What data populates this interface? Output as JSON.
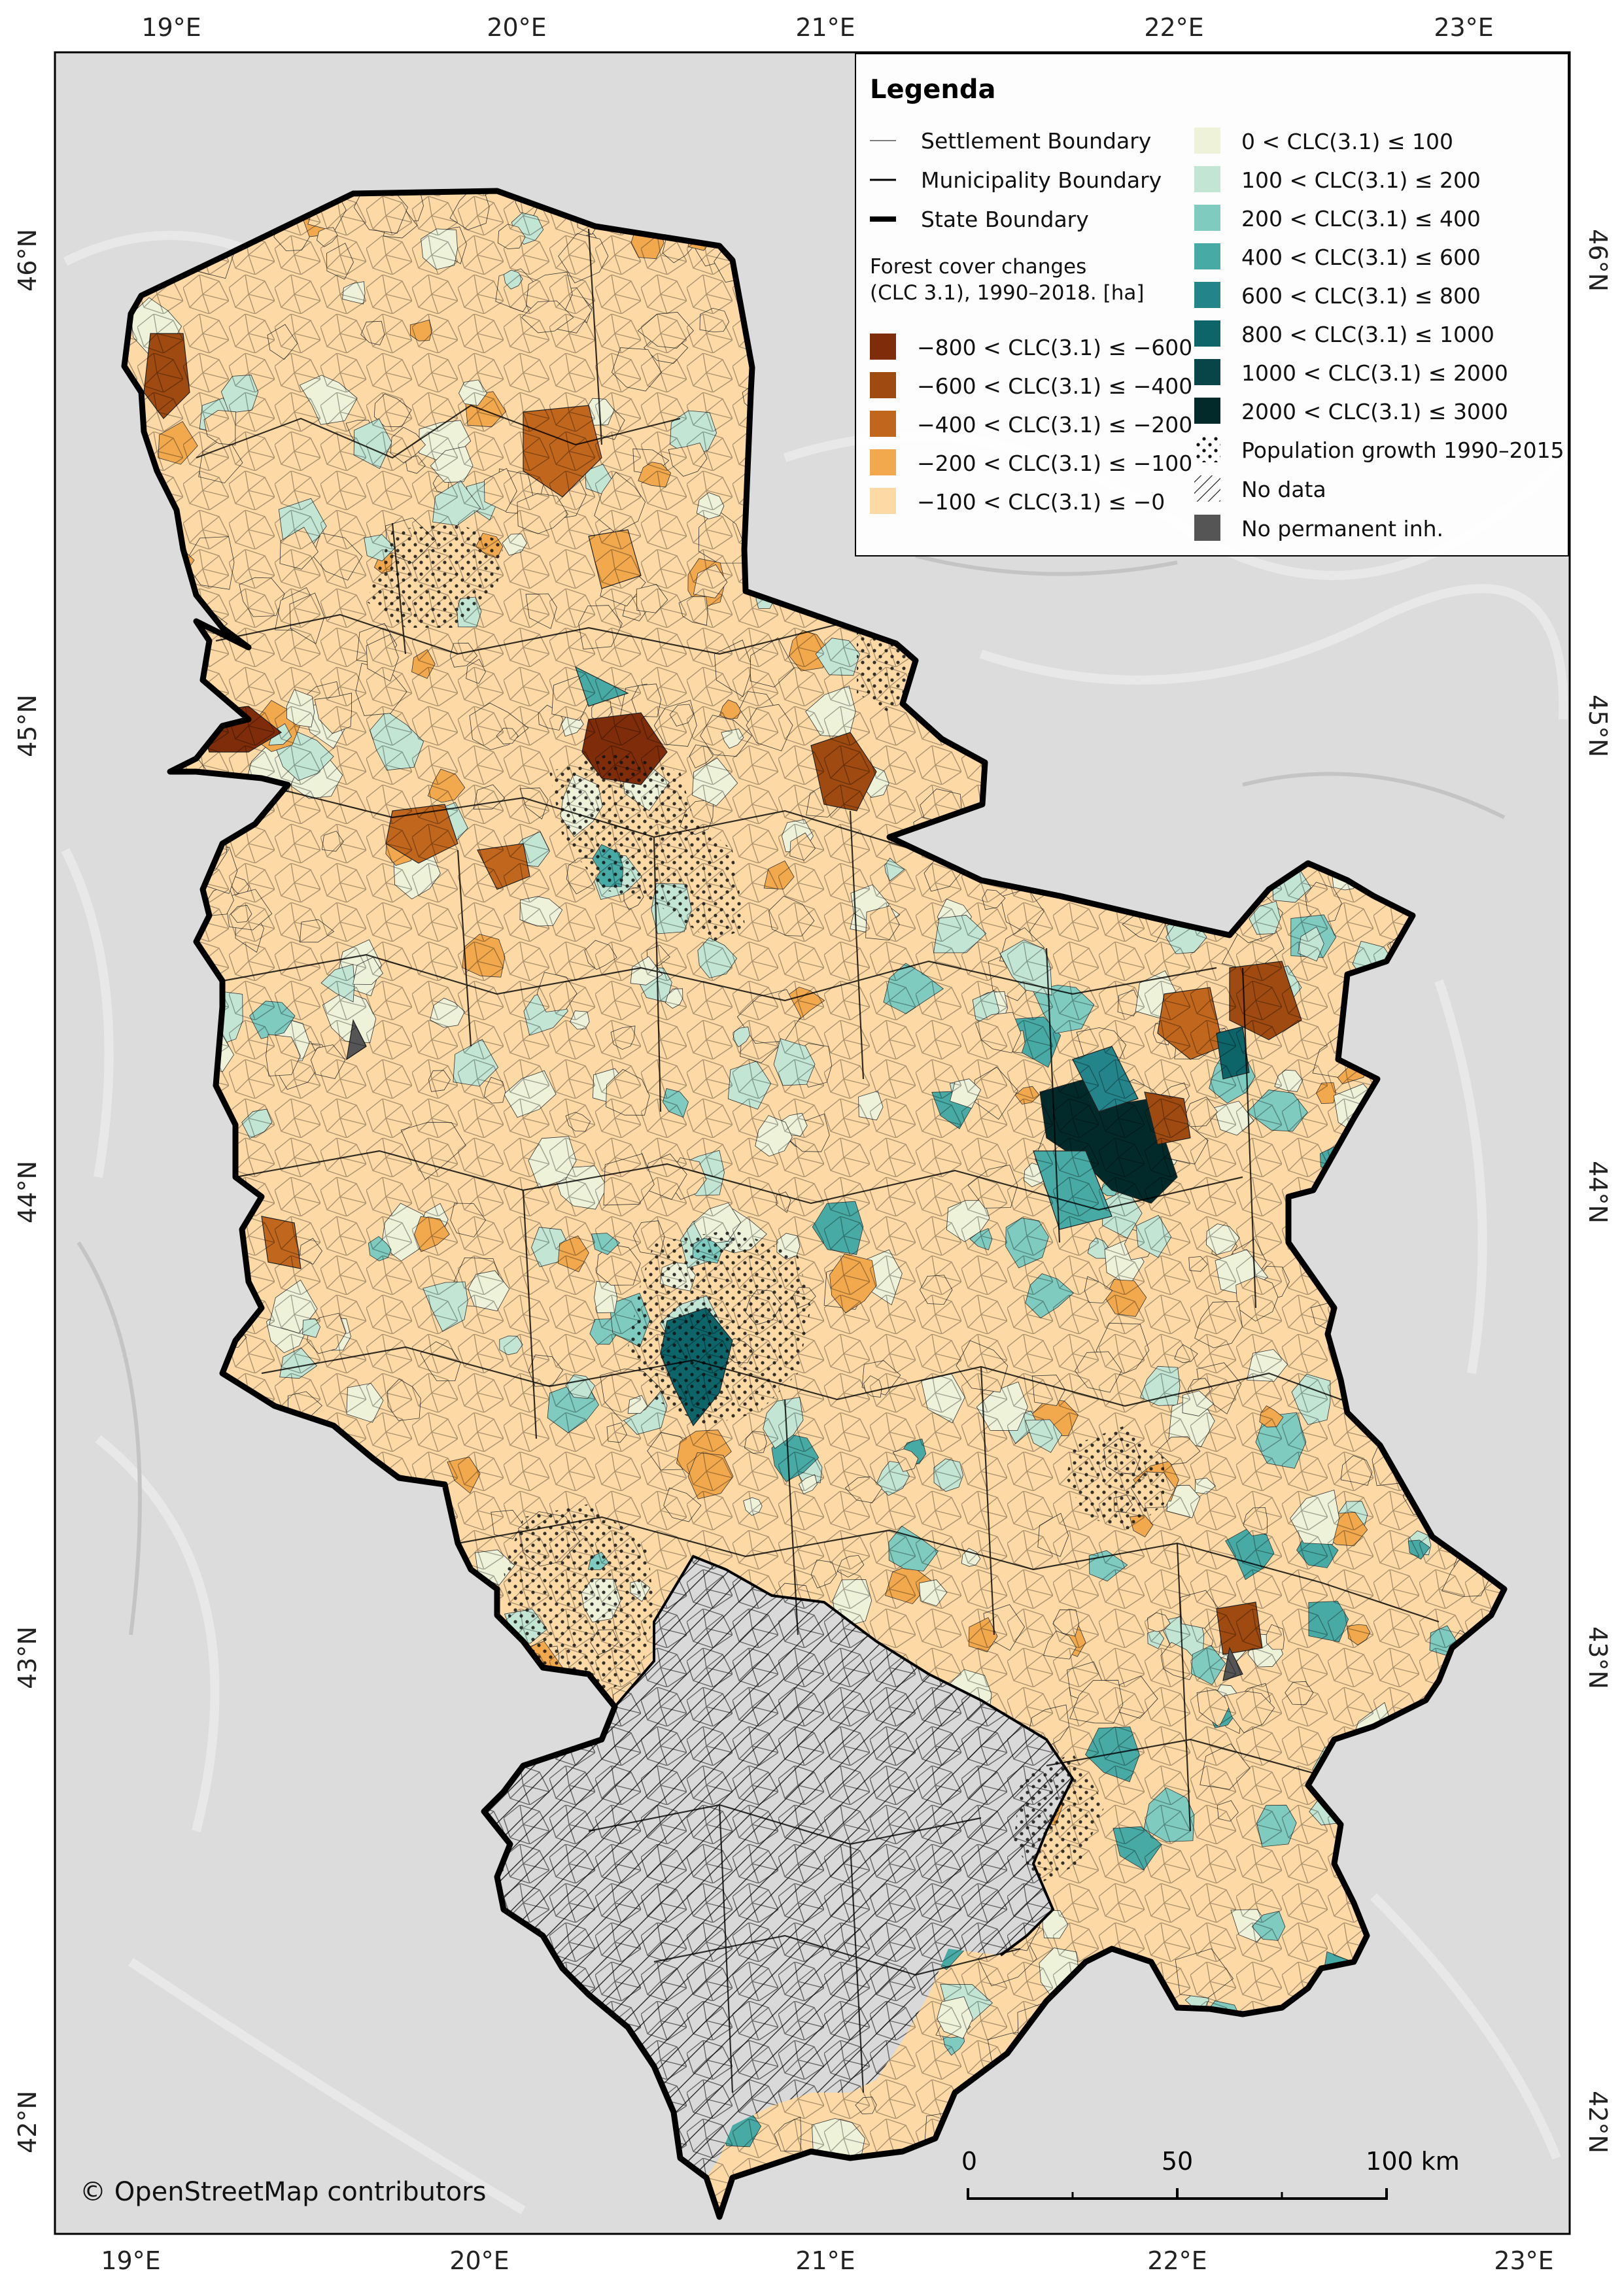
{
  "colors": {
    "base_map": "#dcdcdc",
    "frame": "#000000",
    "legend_bg": "#ffffff",
    "state_boundary": "#000000",
    "no_data": "#d9d9d9",
    "no_permanent": "#555555"
  },
  "axes": {
    "longitudes": [
      "19°E",
      "20°E",
      "21°E",
      "22°E",
      "23°E"
    ],
    "latitudes": [
      "46°N",
      "45°N",
      "44°N",
      "43°N",
      "42°N"
    ]
  },
  "legend": {
    "title": "Legenda",
    "boundaries": [
      {
        "label": "Settlement Boundary",
        "width": 1
      },
      {
        "label": "Municipality Boundary",
        "width": 3
      },
      {
        "label": "State Boundary",
        "width": 8
      }
    ],
    "subtitle_line1": "Forest cover changes",
    "subtitle_line2": "(CLC 3.1), 1990–2018. [ha]",
    "negative_classes": [
      {
        "label": "−800 < CLC(3.1) ≤ −600",
        "color": "#7f2c0b"
      },
      {
        "label": "−600 < CLC(3.1) ≤ −400",
        "color": "#9e4a10"
      },
      {
        "label": "−400 < CLC(3.1) ≤ −200",
        "color": "#c1661d"
      },
      {
        "label": "−200 < CLC(3.1) ≤ −100",
        "color": "#f2a94e"
      },
      {
        "label": "−100 < CLC(3.1) ≤ −0",
        "color": "#fdd9a5"
      }
    ],
    "positive_classes": [
      {
        "label": "0 < CLC(3.1) ≤ 100",
        "color": "#edf2d8"
      },
      {
        "label": "100 < CLC(3.1) ≤ 200",
        "color": "#c3e6d4"
      },
      {
        "label": "200 < CLC(3.1) ≤ 400",
        "color": "#7fcbbf"
      },
      {
        "label": "400 < CLC(3.1) ≤ 600",
        "color": "#47aaa4"
      },
      {
        "label": "600 < CLC(3.1) ≤ 800",
        "color": "#23858a"
      },
      {
        "label": "800 < CLC(3.1) ≤ 1000",
        "color": "#0d6469"
      },
      {
        "label": "1000 < CLC(3.1) ≤ 2000",
        "color": "#074548"
      },
      {
        "label": "2000 < CLC(3.1) ≤ 3000",
        "color": "#022a2a"
      }
    ],
    "population_growth": "Population growth 1990–2015",
    "no_data": "No data",
    "no_permanent": "No permanent inh."
  },
  "scale_bar": {
    "ticks": [
      "0",
      "50",
      "100 km"
    ]
  },
  "attribution": "© OpenStreetMap contributors"
}
